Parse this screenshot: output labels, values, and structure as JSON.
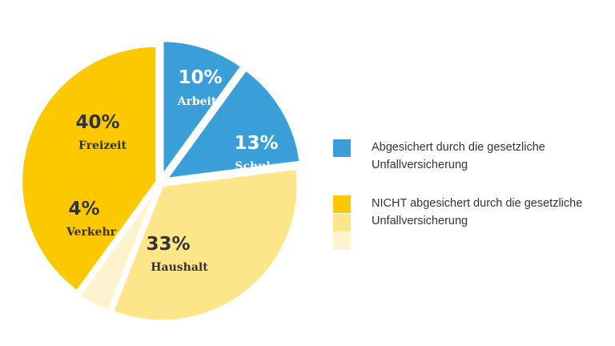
{
  "chart_data": {
    "type": "pie",
    "slices": [
      {
        "label": "Arbeit",
        "value": 10,
        "value_label": "10%",
        "color": "#3a9fd9",
        "group": "covered"
      },
      {
        "label": "Schule",
        "value": 13,
        "value_label": "13%",
        "color": "#3a9fd9",
        "group": "covered"
      },
      {
        "label": "Haushalt",
        "value": 33,
        "value_label": "33%",
        "color": "#fde58a",
        "group": "not_covered"
      },
      {
        "label": "Verkehr",
        "value": 4,
        "value_label": "4%",
        "color": "#fdf4cf",
        "group": "not_covered"
      },
      {
        "label": "Freizeit",
        "value": 40,
        "value_label": "40%",
        "color": "#fcc800",
        "group": "not_covered"
      }
    ],
    "legend": [
      {
        "text": "Abgesichert durch die gesetzliche Unfallversicherung",
        "colors": [
          "#3a9fd9"
        ]
      },
      {
        "text": "NICHT abgesichert durch die gesetzliche Unfallversicherung",
        "colors": [
          "#fcc800",
          "#fde58a",
          "#fdf4cf"
        ]
      }
    ],
    "legend_position": "right"
  }
}
